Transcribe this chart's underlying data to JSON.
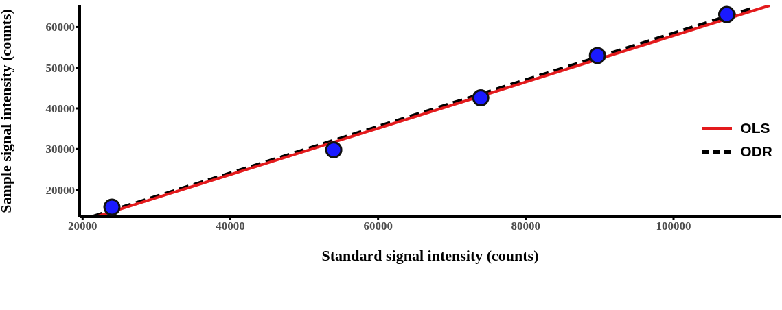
{
  "chart_data": {
    "type": "scatter",
    "xlabel": "Standard signal intensity (counts)",
    "ylabel": "Sample signal intensity (counts)",
    "xlim": [
      19600,
      114500
    ],
    "xticks": [
      20000,
      40000,
      60000,
      80000,
      100000
    ],
    "ylim": [
      13350,
      65300
    ],
    "yticks": [
      20000,
      30000,
      40000,
      50000,
      60000
    ],
    "grid": false,
    "legend": "right",
    "series": [
      {
        "type": "scatter",
        "marker": "circle",
        "color": "#1a1aff",
        "x": [
          23970,
          54000,
          73900,
          89700,
          107200
        ],
        "values": [
          15700,
          29800,
          42600,
          53000,
          63100
        ]
      },
      {
        "type": "line",
        "name": "OLS",
        "color": "#e31a1c",
        "line_style": "solid",
        "x": [
          21900,
          113000
        ],
        "values": [
          13400,
          65300
        ]
      },
      {
        "type": "line",
        "name": "ODR",
        "color": "#000000",
        "line_style": "dashed",
        "x": [
          21400,
          110700
        ],
        "values": [
          13400,
          64600
        ]
      }
    ]
  }
}
